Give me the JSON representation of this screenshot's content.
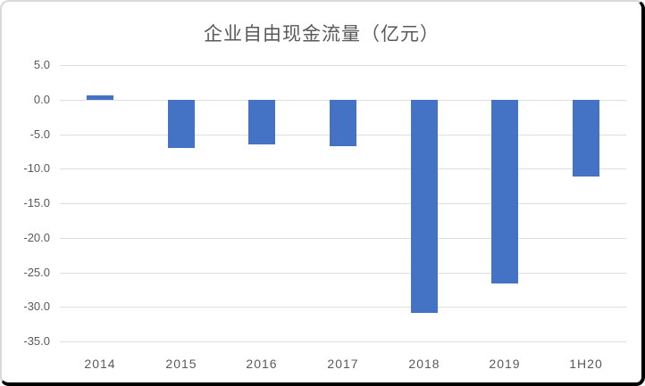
{
  "chart_data": {
    "type": "bar",
    "title": "企业自由现金流量（亿元）",
    "categories": [
      "2014",
      "2015",
      "2016",
      "2017",
      "2018",
      "2019",
      "1H20"
    ],
    "values": [
      0.6,
      -7.0,
      -6.4,
      -6.7,
      -30.8,
      -26.6,
      -11.1
    ],
    "xlabel": "",
    "ylabel": "",
    "ylim": [
      -35,
      5
    ],
    "yticks": [
      {
        "value": 5,
        "label": "5.0"
      },
      {
        "value": 0,
        "label": "0.0"
      },
      {
        "value": -5,
        "label": "-5.0"
      },
      {
        "value": -10,
        "label": "-10.0"
      },
      {
        "value": -15,
        "label": "-15.0"
      },
      {
        "value": -20,
        "label": "-20.0"
      },
      {
        "value": -25,
        "label": "-25.0"
      },
      {
        "value": -30,
        "label": "-30.0"
      },
      {
        "value": -35,
        "label": "-35.0"
      }
    ],
    "grid": true,
    "legend": "none",
    "colors": {
      "bar": "#4472C4",
      "gridline": "#dedede",
      "axis_text": "#595959",
      "title_text": "#595959",
      "frame_dark_border": "#000000",
      "frame_light_border": "#d9d9d9"
    }
  }
}
